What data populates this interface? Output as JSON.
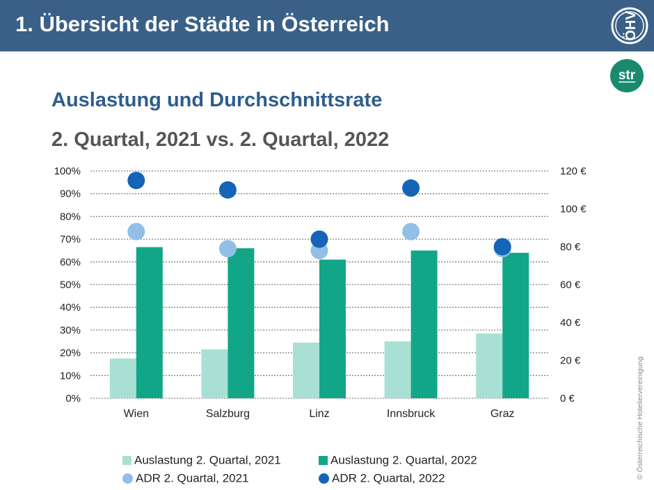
{
  "header": {
    "title": "1. Übersicht der Städte in Österreich"
  },
  "logos": {
    "ohv_text": "ÖHV",
    "str_text": "str"
  },
  "subtitle1": "Auslastung und Durchschnittsrate",
  "subtitle2": "2. Quartal, 2021 vs. 2. Quartal, 2022",
  "copyright": "© Österreichische Hoteliervereinigung",
  "colors": {
    "header_bg": "#3a6087",
    "occ_2021": "#a8e0d4",
    "occ_2022": "#12a688",
    "adr_2021": "#93bfe6",
    "adr_2022": "#1464b8",
    "str_logo": "#1a8a6e"
  },
  "chart_data": {
    "type": "bar",
    "categories": [
      "Wien",
      "Salzburg",
      "Linz",
      "Innsbruck",
      "Graz"
    ],
    "series": [
      {
        "name": "Auslastung 2. Quartal, 2021",
        "type": "bar",
        "axis": "left",
        "values": [
          17.5,
          21.5,
          24.5,
          25,
          28.5
        ]
      },
      {
        "name": "Auslastung 2. Quartal, 2022",
        "type": "bar",
        "axis": "left",
        "values": [
          66.5,
          66,
          61,
          65,
          64
        ]
      },
      {
        "name": "ADR 2. Quartal, 2021",
        "type": "scatter",
        "axis": "right",
        "values": [
          88,
          79,
          78,
          88,
          79
        ]
      },
      {
        "name": "ADR 2. Quartal, 2022",
        "type": "scatter",
        "axis": "right",
        "values": [
          115,
          110,
          84,
          111,
          80
        ]
      }
    ],
    "y_left": {
      "min": 0,
      "max": 100,
      "ticks": [
        "0%",
        "10%",
        "20%",
        "30%",
        "40%",
        "50%",
        "60%",
        "70%",
        "80%",
        "90%",
        "100%"
      ]
    },
    "y_right": {
      "min": 0,
      "max": 120,
      "ticks": [
        "0 €",
        "20 €",
        "40 €",
        "60 €",
        "80 €",
        "100 €",
        "120 €"
      ]
    },
    "grid": true,
    "legend_position": "bottom"
  }
}
